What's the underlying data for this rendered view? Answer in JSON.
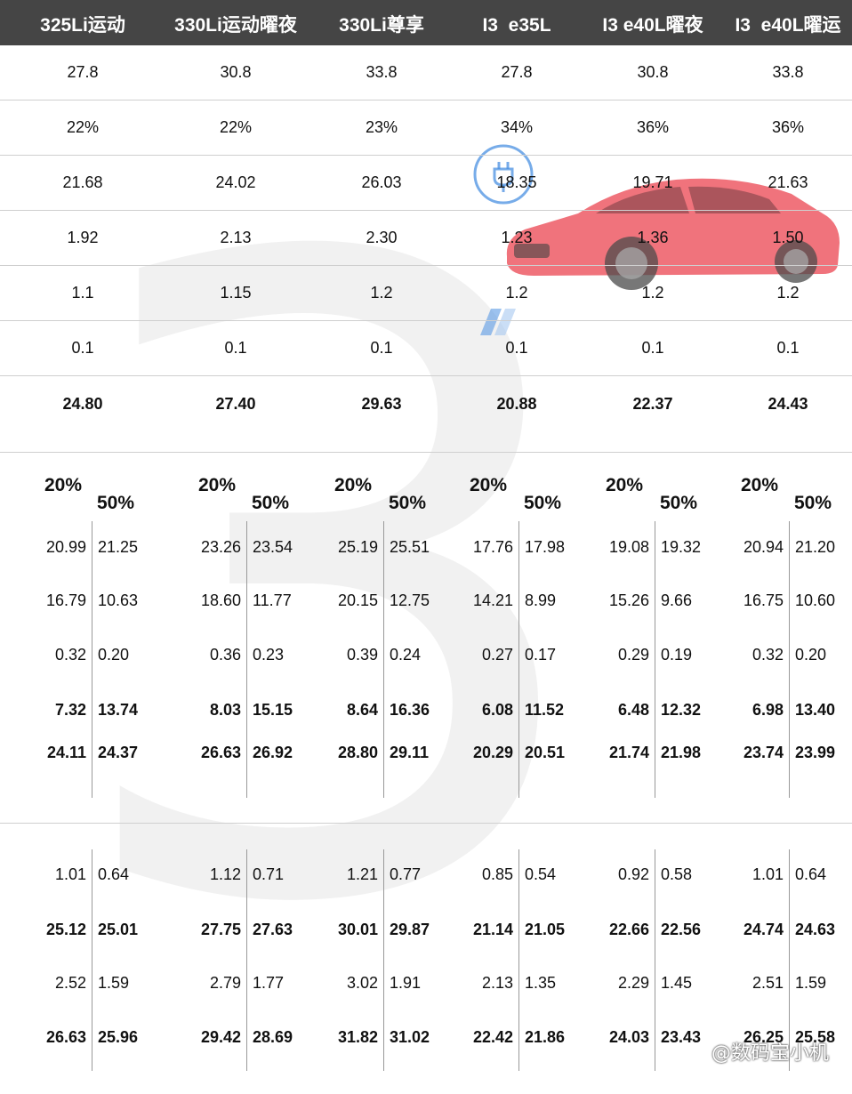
{
  "header": {
    "models": [
      "325Li运动",
      "330Li运动曜夜",
      "330Li尊享",
      "I3  e35L",
      "I3 e40L曜夜",
      "I3  e40L曜运"
    ]
  },
  "top_rows": [
    [
      "27.8",
      "30.8",
      "33.8",
      "27.8",
      "30.8",
      "33.8"
    ],
    [
      "22%",
      "22%",
      "23%",
      "34%",
      "36%",
      "36%"
    ],
    [
      "21.68",
      "24.02",
      "26.03",
      "18.35",
      "19.71",
      "21.63"
    ],
    [
      "1.92",
      "2.13",
      "2.30",
      "1.23",
      "1.36",
      "1.50"
    ],
    [
      "1.1",
      "1.15",
      "1.2",
      "1.2",
      "1.2",
      "1.2"
    ],
    [
      "0.1",
      "0.1",
      "0.1",
      "0.1",
      "0.1",
      "0.1"
    ],
    [
      "24.80",
      "27.40",
      "29.63",
      "20.88",
      "22.37",
      "24.43"
    ]
  ],
  "down_labels": {
    "low": "20%",
    "high": "50%"
  },
  "middle": [
    [
      [
        "20.99",
        "21.25"
      ],
      [
        "16.79",
        "10.63"
      ],
      [
        "0.32",
        "0.20"
      ],
      [
        "7.32",
        "13.74"
      ],
      [
        "24.11",
        "24.37"
      ]
    ],
    [
      [
        "23.26",
        "23.54"
      ],
      [
        "18.60",
        "11.77"
      ],
      [
        "0.36",
        "0.23"
      ],
      [
        "8.03",
        "15.15"
      ],
      [
        "26.63",
        "26.92"
      ]
    ],
    [
      [
        "25.19",
        "25.51"
      ],
      [
        "20.15",
        "12.75"
      ],
      [
        "0.39",
        "0.24"
      ],
      [
        "8.64",
        "16.36"
      ],
      [
        "28.80",
        "29.11"
      ]
    ],
    [
      [
        "17.76",
        "17.98"
      ],
      [
        "14.21",
        "8.99"
      ],
      [
        "0.27",
        "0.17"
      ],
      [
        "6.08",
        "11.52"
      ],
      [
        "20.29",
        "20.51"
      ]
    ],
    [
      [
        "19.08",
        "19.32"
      ],
      [
        "15.26",
        "9.66"
      ],
      [
        "0.29",
        "0.19"
      ],
      [
        "6.48",
        "12.32"
      ],
      [
        "21.74",
        "21.98"
      ]
    ],
    [
      [
        "20.94",
        "21.20"
      ],
      [
        "16.75",
        "10.60"
      ],
      [
        "0.32",
        "0.20"
      ],
      [
        "6.98",
        "13.40"
      ],
      [
        "23.74",
        "23.99"
      ]
    ]
  ],
  "bottom": [
    [
      [
        "1.01",
        "0.64"
      ],
      [
        "25.12",
        "25.01"
      ],
      [
        "2.52",
        "1.59"
      ],
      [
        "26.63",
        "25.96"
      ]
    ],
    [
      [
        "1.12",
        "0.71"
      ],
      [
        "27.75",
        "27.63"
      ],
      [
        "2.79",
        "1.77"
      ],
      [
        "29.42",
        "28.69"
      ]
    ],
    [
      [
        "1.21",
        "0.77"
      ],
      [
        "30.01",
        "29.87"
      ],
      [
        "3.02",
        "1.91"
      ],
      [
        "31.82",
        "31.02"
      ]
    ],
    [
      [
        "0.85",
        "0.54"
      ],
      [
        "21.14",
        "21.05"
      ],
      [
        "2.13",
        "1.35"
      ],
      [
        "22.42",
        "21.86"
      ]
    ],
    [
      [
        "0.92",
        "0.58"
      ],
      [
        "22.66",
        "22.56"
      ],
      [
        "2.29",
        "1.45"
      ],
      [
        "24.03",
        "23.43"
      ]
    ],
    [
      [
        "1.01",
        "0.64"
      ],
      [
        "24.74",
        "24.63"
      ],
      [
        "2.51",
        "1.59"
      ],
      [
        "26.25",
        "25.58"
      ]
    ]
  ],
  "watermark": {
    "text": "@数码宝小机"
  },
  "colors": {
    "header_bg": "#454545",
    "header_text": "#ffffff",
    "car_red": "#e8323f",
    "badge_blue": "#4a90e2"
  }
}
